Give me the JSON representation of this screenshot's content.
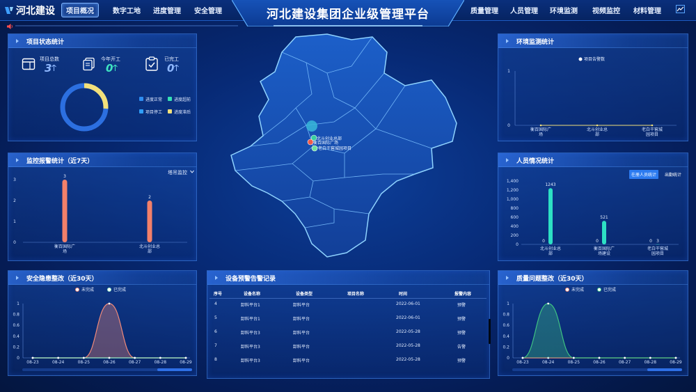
{
  "header": {
    "logo_text": "河北建设",
    "title": "河北建设集团企业级管理平台",
    "nav_left": [
      "项目概况",
      "数字工地",
      "进度管理",
      "安全管理"
    ],
    "nav_right": [
      "质量管理",
      "人员管理",
      "环境监测",
      "视频监控",
      "材料管理"
    ],
    "active_nav": "项目概况",
    "right_icon": "trend-icon"
  },
  "project_stats": {
    "title": "项目状态统计",
    "items": [
      {
        "label": "项目总数",
        "value": "3",
        "icon": "folder-icon"
      },
      {
        "label": "今年开工",
        "value": "0",
        "icon": "document-stack-icon"
      },
      {
        "label": "已完工",
        "value": "0",
        "icon": "clipboard-check-icon"
      }
    ],
    "legend": [
      {
        "label": "进度正常",
        "color": "#2e8cf0"
      },
      {
        "label": "进度超前",
        "color": "#35e0b4"
      },
      {
        "label": "项目停工",
        "color": "#2f9df7"
      },
      {
        "label": "进度滞后",
        "color": "#f2e07a"
      }
    ],
    "donut": {
      "blue_fraction": 0.74,
      "yellow_fraction": 0.26
    }
  },
  "monitor_alarm": {
    "title": "监控报警统计（近7天）",
    "dropdown": "塔吊监控",
    "chart_data": {
      "type": "bar",
      "categories": [
        "衡百国际广场",
        "北斗创业总部"
      ],
      "values": [
        3,
        2
      ],
      "yticks": [
        "0",
        "1",
        "2",
        "3"
      ],
      "ylim": [
        0,
        3
      ],
      "data_labels": [
        "3",
        "2"
      ]
    }
  },
  "env_monitor": {
    "title": "环境监测统计",
    "chart_data": {
      "type": "line",
      "legend": "项目告警数",
      "categories": [
        "衡百国际广场",
        "北斗创业总部",
        "老白干窖城园项目"
      ],
      "values": [
        0,
        0,
        0
      ],
      "yticks": [
        "0",
        "1"
      ],
      "ylim": [
        0,
        1
      ]
    }
  },
  "personnel": {
    "title": "人员情况统计",
    "tabs": [
      "在册人员统计",
      "出勤统计"
    ],
    "chart_data": {
      "type": "bar",
      "categories": [
        "北斗创业总部",
        "衡百国际广场建设",
        "老白干窖城园项目"
      ],
      "series": [
        {
          "values": [
            0,
            0,
            0
          ]
        },
        {
          "values": [
            1243,
            521,
            3
          ]
        }
      ],
      "yticks": [
        "0",
        "200",
        "400",
        "600",
        "800",
        "1,000",
        "1,200",
        "1,400"
      ],
      "ylim": [
        0,
        1400
      ],
      "data_labels_a": [
        "0",
        "0",
        "0"
      ],
      "data_labels_b": [
        "1243",
        "521",
        "3"
      ]
    }
  },
  "safety": {
    "title": "安全隐患整改（近30天）",
    "chart_data": {
      "type": "area",
      "series": [
        {
          "name": "未完成",
          "values": [
            0,
            0,
            0,
            1,
            0,
            0,
            0
          ],
          "color": "#f08a7a"
        },
        {
          "name": "已完成",
          "values": [
            0,
            0,
            0,
            0,
            0,
            0,
            0
          ],
          "color": "#9ff0c8"
        }
      ],
      "categories": [
        "08-23",
        "08-24",
        "08-25",
        "08-26",
        "08-27",
        "08-28",
        "08-29"
      ],
      "yticks": [
        "0",
        "0.2",
        "0.4",
        "0.6",
        "0.8",
        "1"
      ],
      "ylim": [
        0,
        1
      ]
    }
  },
  "quality": {
    "title": "质量问题整改（近30天）",
    "chart_data": {
      "type": "area",
      "series": [
        {
          "name": "未完成",
          "values": [
            0,
            0,
            0,
            0,
            0,
            0,
            0
          ],
          "color": "#f08a7a"
        },
        {
          "name": "已完成",
          "values": [
            0,
            1,
            0,
            0,
            0,
            0,
            0
          ],
          "color": "#3fc283"
        }
      ],
      "categories": [
        "08-23",
        "08-24",
        "08-25",
        "08-26",
        "08-27",
        "08-28",
        "08-29"
      ],
      "yticks": [
        "0",
        "0.2",
        "0.4",
        "0.6",
        "0.8",
        "1"
      ],
      "ylim": [
        0,
        1
      ]
    }
  },
  "device_alerts": {
    "title": "设备预警告警记录",
    "columns": [
      "序号",
      "设备名称",
      "设备类型",
      "项目名称",
      "时间",
      "报警内容"
    ],
    "rows": [
      [
        "4",
        "卸料平台1",
        "卸料平台",
        "",
        "2022-06-01",
        "预警"
      ],
      [
        "5",
        "卸料平台1",
        "卸料平台",
        "",
        "2022-06-01",
        "预警"
      ],
      [
        "6",
        "卸料平台3",
        "卸料平台",
        "",
        "2022-05-28",
        "预警"
      ],
      [
        "7",
        "卸料平台3",
        "卸料平台",
        "",
        "2022-05-28",
        "告警"
      ],
      [
        "8",
        "卸料平台3",
        "卸料平台",
        "",
        "2022-05-28",
        "预警"
      ]
    ]
  },
  "map": {
    "markers": [
      "北斗创业总部",
      "衡百国际广场",
      "老白干窖城园项目"
    ]
  }
}
